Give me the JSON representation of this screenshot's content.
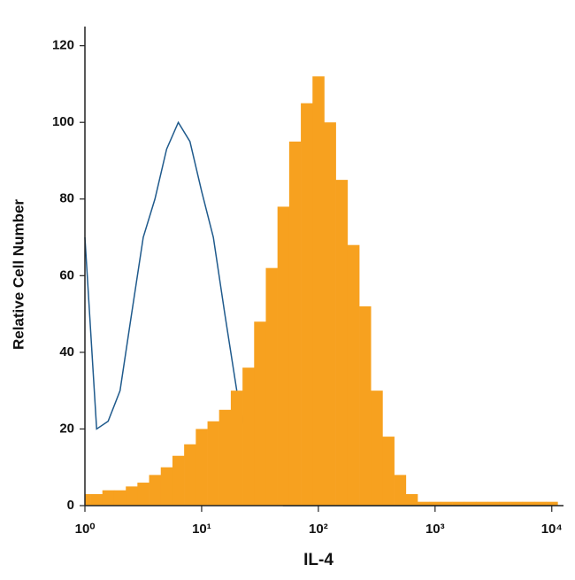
{
  "chart_data": {
    "type": "histogram",
    "xlabel": "IL-4",
    "ylabel": "Relative Cell Number",
    "xscale": "log",
    "xlim": [
      1,
      12600
    ],
    "ylim": [
      0,
      125
    ],
    "xticks": [
      {
        "value": 1,
        "label": "10⁰"
      },
      {
        "value": 10,
        "label": "10¹"
      },
      {
        "value": 100,
        "label": "10²"
      },
      {
        "value": 1000,
        "label": "10³"
      },
      {
        "value": 10000,
        "label": "10⁴"
      }
    ],
    "yticks": [
      0,
      20,
      40,
      60,
      80,
      100,
      120
    ],
    "x": [
      1,
      1.26,
      1.58,
      2.0,
      2.51,
      3.16,
      3.98,
      5.01,
      6.31,
      7.94,
      10,
      12.6,
      15.8,
      20,
      25.1,
      31.6,
      39.8,
      50.1,
      63.1,
      79.4,
      100,
      126,
      158,
      200,
      251,
      316,
      398,
      501,
      631,
      794,
      1000,
      1259,
      1585,
      1995,
      2512,
      3162,
      3981,
      5012,
      6310,
      7943,
      10000
    ],
    "series": [
      {
        "color": "#1f5a8c",
        "fill": false,
        "values": [
          70,
          20,
          22,
          30,
          50,
          70,
          80,
          93,
          100,
          95,
          82,
          70,
          50,
          30,
          15,
          5,
          1,
          0,
          0,
          0,
          0,
          0,
          0,
          0,
          0,
          0,
          0,
          0,
          0,
          0,
          0,
          0,
          0,
          0,
          0,
          0,
          0,
          0,
          0,
          0,
          0
        ]
      },
      {
        "color": "#f7a11f",
        "fill": true,
        "values": [
          3,
          3,
          4,
          4,
          5,
          6,
          8,
          10,
          13,
          16,
          20,
          22,
          25,
          30,
          36,
          48,
          62,
          78,
          95,
          105,
          112,
          100,
          85,
          68,
          52,
          30,
          18,
          8,
          3,
          1,
          1,
          1,
          1,
          1,
          1,
          1,
          1,
          1,
          1,
          1,
          1
        ]
      }
    ]
  }
}
